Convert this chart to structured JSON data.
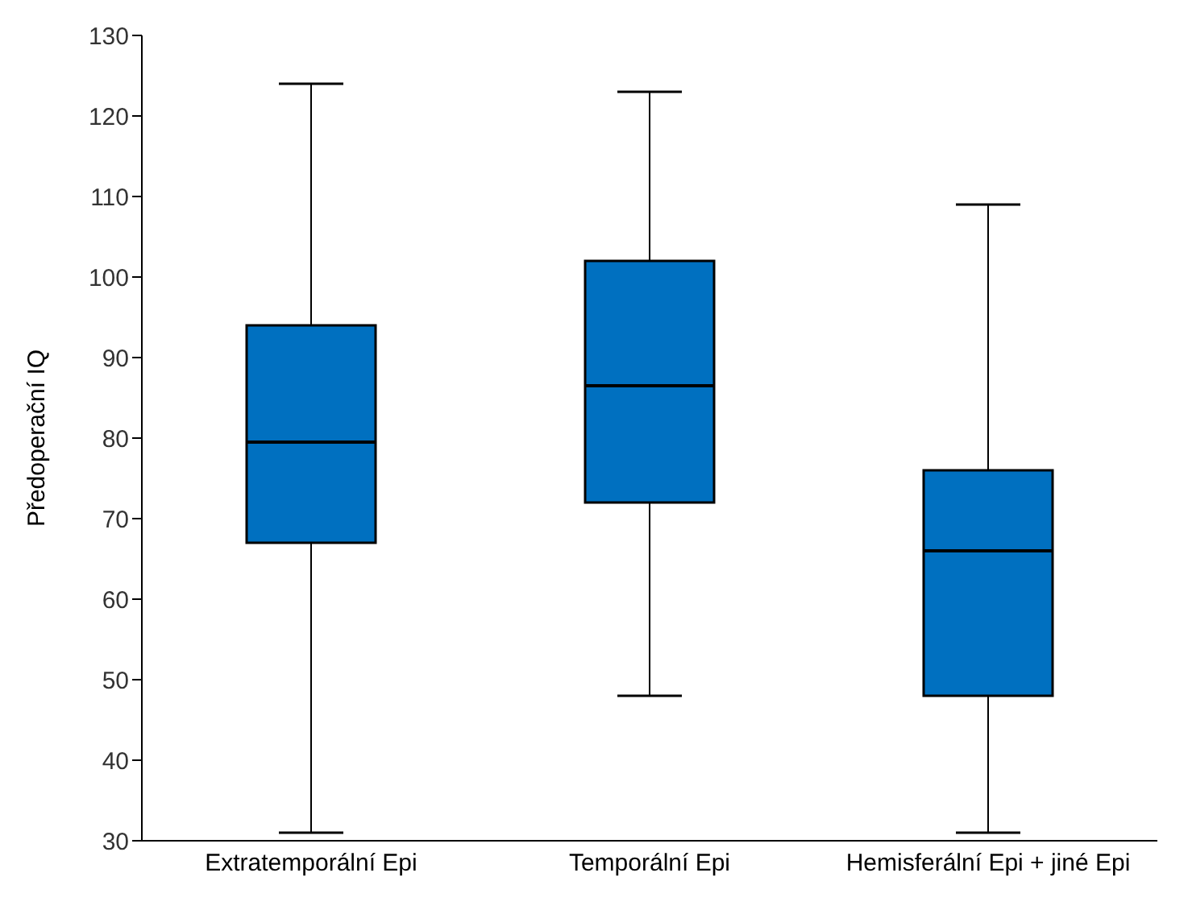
{
  "chart_data": {
    "type": "box",
    "ylabel": "Předoperační IQ",
    "categories": [
      "Extratemporální Epi",
      "Temporální Epi",
      "Hemisferální Epi + jiné Epi"
    ],
    "color": "#0070c0",
    "ylim": [
      30,
      130
    ],
    "yticks": [
      30,
      40,
      50,
      60,
      70,
      80,
      90,
      100,
      110,
      120,
      130
    ],
    "grid": false,
    "boxes": [
      {
        "low": 31,
        "q1": 67,
        "median": 79.5,
        "q3": 94,
        "high": 124
      },
      {
        "low": 48,
        "q1": 72,
        "median": 86.5,
        "q3": 102,
        "high": 123
      },
      {
        "low": 31,
        "q1": 48,
        "median": 66,
        "q3": 76,
        "high": 109
      }
    ]
  }
}
